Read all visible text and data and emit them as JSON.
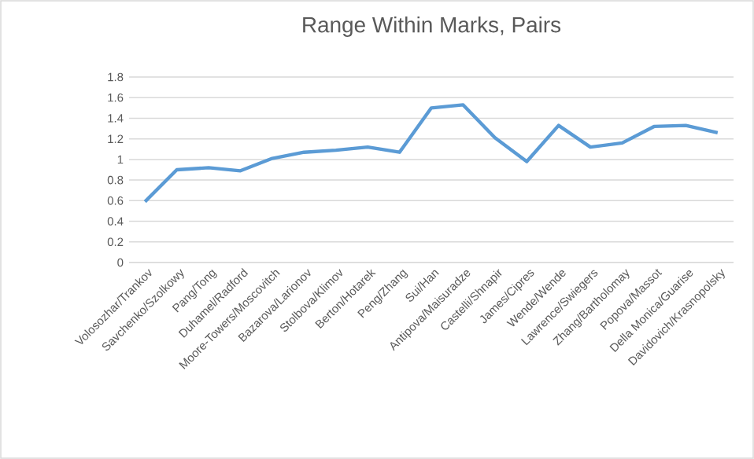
{
  "chart_data": {
    "type": "line",
    "title": "Range Within Marks, Pairs",
    "categories": [
      "Volosozhar/Trankov",
      "Savchenko/Szolkowy",
      "Pang/Tong",
      "Duhamel/Radford",
      "Moore-Towers/Moscovitch",
      "Bazarova/Larionov",
      "Stolbova/Klimov",
      "Berton/Hotarek",
      "Peng/Zhang",
      "Sui/Han",
      "Antipova/Maisuradze",
      "Castelli/Shnapir",
      "James/Cipres",
      "Wende/Wende",
      "Lawrence/Swiegers",
      "Zhang/Bartholomay",
      "Popova/Massot",
      "Della Monica/Guarise",
      "Davidovich/Krasnopolsky"
    ],
    "values": [
      0.59,
      0.9,
      0.92,
      0.89,
      1.01,
      1.07,
      1.09,
      1.12,
      1.07,
      1.5,
      1.53,
      1.21,
      0.98,
      1.33,
      1.12,
      1.16,
      1.32,
      1.33,
      1.26
    ],
    "color": "#5b9bd5",
    "ylim": [
      0,
      1.8
    ],
    "yticks": [
      0,
      0.2,
      0.4,
      0.6,
      0.8,
      1,
      1.2,
      1.4,
      1.6,
      1.8
    ],
    "grid": "y",
    "marker": "none",
    "line_style": "solid"
  }
}
